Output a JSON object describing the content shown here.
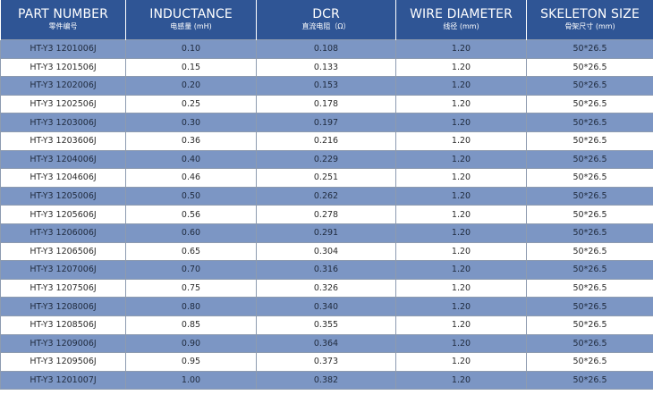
{
  "headers": [
    {
      "en": "PART NUMBER",
      "cn": "零件编号"
    },
    {
      "en": "INDUCTANCE",
      "cn": "电感量 (mH)"
    },
    {
      "en": "DCR",
      "cn": "直流电阻（Ω）"
    },
    {
      "en": "WIRE DIAMETER",
      "cn": "线径 (mm)"
    },
    {
      "en": "SKELETON SIZE",
      "cn": "骨架尺寸 (mm)"
    }
  ],
  "rows": [
    [
      "HT-Y3 1201006J",
      "0.10",
      "0.108",
      "1.20",
      "50*26.5"
    ],
    [
      "HT-Y3 1201506J",
      "0.15",
      "0.133",
      "1.20",
      "50*26.5"
    ],
    [
      "HT-Y3 1202006J",
      "0.20",
      "0.153",
      "1.20",
      "50*26.5"
    ],
    [
      "HT-Y3 1202506J",
      "0.25",
      "0.178",
      "1.20",
      "50*26.5"
    ],
    [
      "HT-Y3 1203006J",
      "0.30",
      "0.197",
      "1.20",
      "50*26.5"
    ],
    [
      "HT-Y3 1203606J",
      "0.36",
      "0.216",
      "1.20",
      "50*26.5"
    ],
    [
      "HT-Y3 1204006J",
      "0.40",
      "0.229",
      "1.20",
      "50*26.5"
    ],
    [
      "HT-Y3 1204606J",
      "0.46",
      "0.251",
      "1.20",
      "50*26.5"
    ],
    [
      "HT-Y3 1205006J",
      "0.50",
      "0.262",
      "1.20",
      "50*26.5"
    ],
    [
      "HT-Y3 1205606J",
      "0.56",
      "0.278",
      "1.20",
      "50*26.5"
    ],
    [
      "HT-Y3 1206006J",
      "0.60",
      "0.291",
      "1.20",
      "50*26.5"
    ],
    [
      "HT-Y3 1206506J",
      "0.65",
      "0.304",
      "1.20",
      "50*26.5"
    ],
    [
      "HT-Y3 1207006J",
      "0.70",
      "0.316",
      "1.20",
      "50*26.5"
    ],
    [
      "HT-Y3 1207506J",
      "0.75",
      "0.326",
      "1.20",
      "50*26.5"
    ],
    [
      "HT-Y3 1208006J",
      "0.80",
      "0.340",
      "1.20",
      "50*26.5"
    ],
    [
      "HT-Y3 1208506J",
      "0.85",
      "0.355",
      "1.20",
      "50*26.5"
    ],
    [
      "HT-Y3 1209006J",
      "0.90",
      "0.364",
      "1.20",
      "50*26.5"
    ],
    [
      "HT-Y3 1209506J",
      "0.95",
      "0.373",
      "1.20",
      "50*26.5"
    ],
    [
      "HT-Y3 1201007J",
      "1.00",
      "0.382",
      "1.20",
      "50*26.5"
    ]
  ],
  "colors": {
    "header_bg": "#2f5595",
    "row_dark_bg": "#7c96c4",
    "row_light_bg": "#ffffff"
  }
}
